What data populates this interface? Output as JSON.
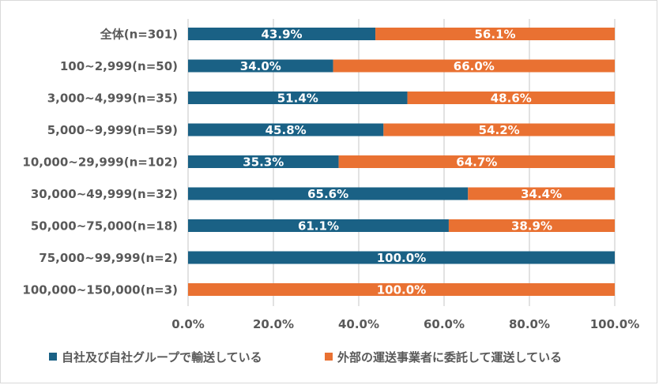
{
  "chart_data": {
    "type": "bar",
    "orientation": "horizontal",
    "stacked": "percent",
    "title": "",
    "xlabel": "",
    "ylabel": "",
    "xlim": [
      0,
      100
    ],
    "grid": true,
    "legend_position": "bottom",
    "categories": [
      "全体(n=301)",
      "100~2,999(n=50)",
      "3,000~4,999(n=35)",
      "5,000~9,999(n=59)",
      "10,000~29,999(n=102)",
      "30,000~49,999(n=32)",
      "50,000~75,000(n=18)",
      "75,000~99,999(n=2)",
      "100,000~150,000(n=3)"
    ],
    "x_ticks": [
      "0.0%",
      "20.0%",
      "40.0%",
      "60.0%",
      "80.0%",
      "100.0%"
    ],
    "series": [
      {
        "name": "自社及び自社グループで輸送している",
        "color": "#1a6185",
        "values": [
          43.9,
          34.0,
          51.4,
          45.8,
          35.3,
          65.6,
          61.1,
          100.0,
          0.0
        ],
        "labels": [
          "43.9%",
          "34.0%",
          "51.4%",
          "45.8%",
          "35.3%",
          "65.6%",
          "61.1%",
          "100.0%",
          ""
        ]
      },
      {
        "name": "外部の運送事業者に委託して運送している",
        "color": "#e97132",
        "values": [
          56.1,
          66.0,
          48.6,
          54.2,
          64.7,
          34.4,
          38.9,
          0.0,
          100.0
        ],
        "labels": [
          "56.1%",
          "66.0%",
          "48.6%",
          "54.2%",
          "64.7%",
          "34.4%",
          "38.9%",
          "",
          "100.0%"
        ]
      }
    ]
  }
}
